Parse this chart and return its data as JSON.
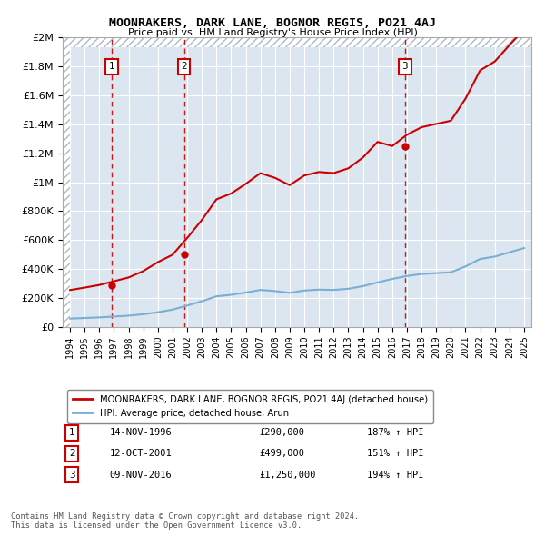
{
  "title": "MOONRAKERS, DARK LANE, BOGNOR REGIS, PO21 4AJ",
  "subtitle": "Price paid vs. HM Land Registry's House Price Index (HPI)",
  "transactions": [
    {
      "num": 1,
      "date": "14-NOV-1996",
      "price": 290000,
      "pct": "187%",
      "year": 1996.87
    },
    {
      "num": 2,
      "date": "12-OCT-2001",
      "price": 499000,
      "pct": "151%",
      "year": 2001.78
    },
    {
      "num": 3,
      "date": "09-NOV-2016",
      "price": 1250000,
      "pct": "194%",
      "year": 2016.87
    }
  ],
  "legend_label_red": "MOONRAKERS, DARK LANE, BOGNOR REGIS, PO21 4AJ (detached house)",
  "legend_label_blue": "HPI: Average price, detached house, Arun",
  "footnote1": "Contains HM Land Registry data © Crown copyright and database right 2024.",
  "footnote2": "This data is licensed under the Open Government Licence v3.0.",
  "red_color": "#cc0000",
  "blue_color": "#7aafd4",
  "background_color": "#dce6f0",
  "ylim": [
    0,
    2000000
  ],
  "xlim_start": 1993.5,
  "xlim_end": 2025.5,
  "hpi_years": [
    1994,
    1995,
    1996,
    1997,
    1998,
    1999,
    2000,
    2001,
    2002,
    2003,
    2004,
    2005,
    2006,
    2007,
    2008,
    2009,
    2010,
    2011,
    2012,
    2013,
    2014,
    2015,
    2016,
    2017,
    2018,
    2019,
    2020,
    2021,
    2022,
    2023,
    2024,
    2025
  ],
  "hpi_values": [
    58000,
    62000,
    66000,
    72000,
    78000,
    88000,
    102000,
    120000,
    148000,
    178000,
    212000,
    222000,
    238000,
    256000,
    248000,
    236000,
    252000,
    258000,
    256000,
    264000,
    282000,
    308000,
    332000,
    352000,
    366000,
    372000,
    378000,
    418000,
    470000,
    486000,
    516000,
    545000
  ],
  "red_years": [
    1994,
    1995,
    1996,
    1997,
    1998,
    1999,
    2000,
    2001,
    2002,
    2003,
    2004,
    2005,
    2006,
    2007,
    2008,
    2009,
    2010,
    2011,
    2012,
    2013,
    2014,
    2015,
    2016,
    2017,
    2018,
    2019,
    2020,
    2021,
    2022,
    2023,
    2024,
    2025
  ],
  "red_values": [
    255000,
    272000,
    290000,
    316000,
    342000,
    386000,
    448000,
    499000,
    615000,
    739000,
    882000,
    922000,
    989000,
    1063000,
    1030000,
    980000,
    1047000,
    1071000,
    1063000,
    1096000,
    1171000,
    1279000,
    1250000,
    1328000,
    1380000,
    1403000,
    1425000,
    1577000,
    1773000,
    1834000,
    1947000,
    2056000
  ],
  "marker_y": 1800000,
  "yticks": [
    0,
    200000,
    400000,
    600000,
    800000,
    1000000,
    1200000,
    1400000,
    1600000,
    1800000,
    2000000
  ],
  "xticks": [
    1994,
    1995,
    1996,
    1997,
    1998,
    1999,
    2000,
    2001,
    2002,
    2003,
    2004,
    2005,
    2006,
    2007,
    2008,
    2009,
    2010,
    2011,
    2012,
    2013,
    2014,
    2015,
    2016,
    2017,
    2018,
    2019,
    2020,
    2021,
    2022,
    2023,
    2024,
    2025
  ]
}
